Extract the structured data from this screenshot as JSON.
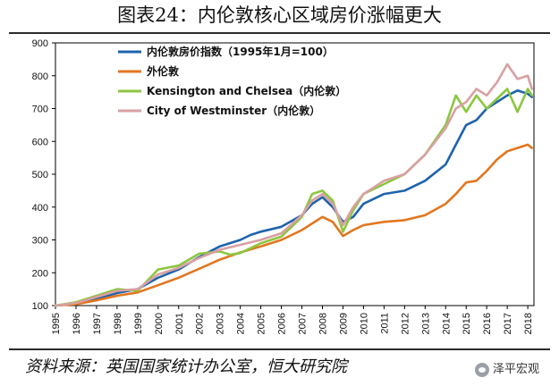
{
  "title": "图表24：内伦敦核心区域房价涨幅更大",
  "source": "资料来源：英国国家统计办公室，恒大研究院",
  "watermark": "泽平宏观",
  "chart_data": {
    "type": "line",
    "title": "图表24：内伦敦核心区域房价涨幅更大",
    "xlabel": "",
    "ylabel": "",
    "x_ticks": [
      "1995",
      "1996",
      "1997",
      "1998",
      "1999",
      "2000",
      "2001",
      "2002",
      "2003",
      "2004",
      "2005",
      "2006",
      "2007",
      "2008",
      "2009",
      "2010",
      "2011",
      "2012",
      "2013",
      "2014",
      "2015",
      "2016",
      "2017",
      "2018"
    ],
    "y_ticks": [
      100,
      200,
      300,
      400,
      500,
      600,
      700,
      800,
      900
    ],
    "xlim": [
      1995,
      2018.3
    ],
    "ylim": [
      100,
      900
    ],
    "grid": false,
    "legend_position": "top-left",
    "series": [
      {
        "name": "内伦敦房价指数（1995年1月=100）",
        "color": "#1f63ad",
        "x": [
          1995,
          1996,
          1997,
          1998,
          1999,
          2000,
          2001,
          2002,
          2003,
          2004,
          2004.5,
          2005,
          2006,
          2007,
          2007.5,
          2008,
          2008.5,
          2009,
          2009.5,
          2010,
          2011,
          2012,
          2013,
          2014,
          2014.5,
          2015,
          2015.5,
          2016,
          2017,
          2017.5,
          2018,
          2018.2
        ],
        "y": [
          100,
          106,
          120,
          138,
          150,
          185,
          210,
          248,
          280,
          300,
          315,
          325,
          340,
          375,
          410,
          430,
          400,
          355,
          370,
          410,
          440,
          450,
          480,
          530,
          590,
          650,
          665,
          700,
          740,
          755,
          745,
          735
        ]
      },
      {
        "name": "外伦敦",
        "color": "#e2761f",
        "x": [
          1995,
          1996,
          1997,
          1998,
          1999,
          2000,
          2001,
          2002,
          2003,
          2004,
          2005,
          2006,
          2007,
          2008,
          2008.5,
          2009,
          2009.5,
          2010,
          2011,
          2012,
          2013,
          2014,
          2014.5,
          2015,
          2015.5,
          2016,
          2016.5,
          2017,
          2017.5,
          2018,
          2018.2
        ],
        "y": [
          100,
          104,
          116,
          130,
          140,
          162,
          185,
          212,
          240,
          262,
          280,
          300,
          330,
          370,
          355,
          312,
          330,
          345,
          355,
          360,
          375,
          410,
          440,
          475,
          480,
          510,
          545,
          570,
          580,
          590,
          580
        ]
      },
      {
        "name": "Kensington and Chelsea（内伦敦）",
        "color": "#8cc63f",
        "x": [
          1995,
          1996,
          1997,
          1998,
          1999,
          2000,
          2001,
          2002,
          2003,
          2003.5,
          2004,
          2005,
          2006,
          2007,
          2007.5,
          2008,
          2008.5,
          2009,
          2009.5,
          2010,
          2011,
          2012,
          2013,
          2014,
          2014.5,
          2015,
          2015.5,
          2016,
          2016.5,
          2017,
          2017.5,
          2018,
          2018.2
        ],
        "y": [
          100,
          110,
          130,
          150,
          145,
          210,
          222,
          258,
          265,
          255,
          260,
          290,
          310,
          370,
          440,
          450,
          420,
          325,
          390,
          440,
          470,
          500,
          560,
          650,
          740,
          690,
          740,
          700,
          730,
          760,
          690,
          760,
          740
        ]
      },
      {
        "name": "City of Westminster（内伦敦）",
        "color": "#d9a0a3",
        "x": [
          1995,
          1996,
          1997,
          1998,
          1999,
          2000,
          2001,
          2002,
          2003,
          2004,
          2005,
          2006,
          2007,
          2007.5,
          2008,
          2008.5,
          2009,
          2009.5,
          2010,
          2011,
          2012,
          2013,
          2014,
          2014.5,
          2015,
          2015.5,
          2016,
          2016.5,
          2017,
          2017.5,
          2018,
          2018.2
        ],
        "y": [
          100,
          108,
          126,
          145,
          150,
          195,
          215,
          245,
          270,
          285,
          300,
          320,
          375,
          420,
          440,
          410,
          345,
          400,
          440,
          480,
          500,
          560,
          640,
          700,
          720,
          760,
          740,
          780,
          835,
          790,
          800,
          760
        ]
      }
    ]
  }
}
